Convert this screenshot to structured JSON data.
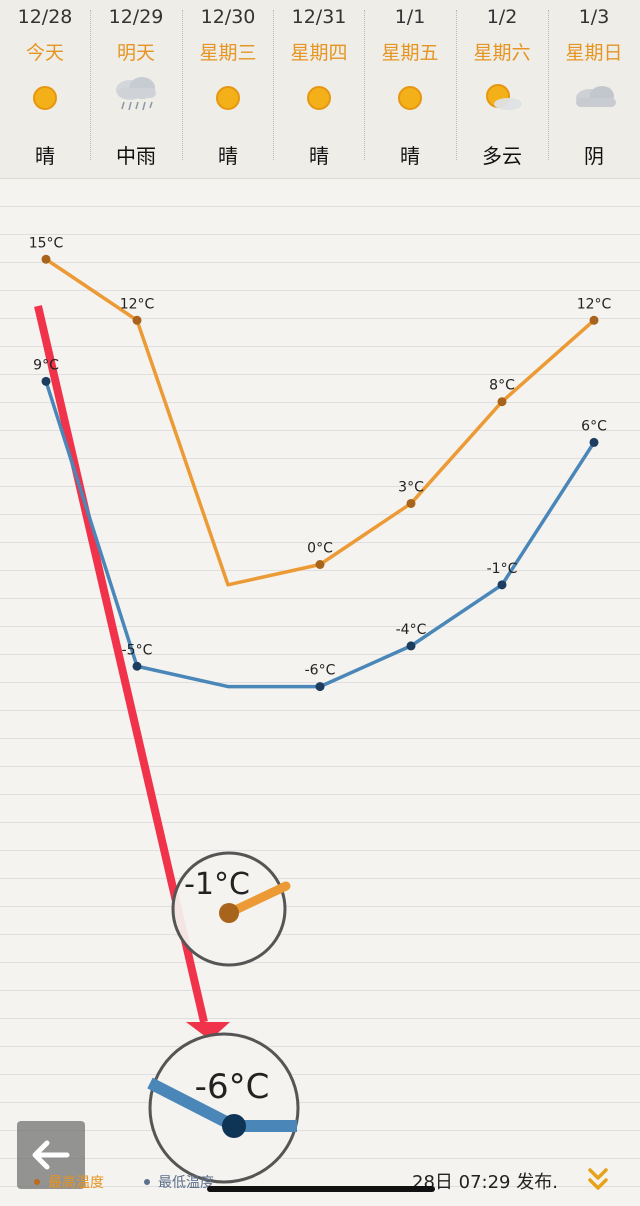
{
  "forecast": {
    "days": [
      {
        "date": "12/28",
        "label": "今天",
        "condition": "晴",
        "icon": "sunny-icon"
      },
      {
        "date": "12/29",
        "label": "明天",
        "condition": "中雨",
        "icon": "rain-icon"
      },
      {
        "date": "12/30",
        "label": "星期三",
        "condition": "晴",
        "icon": "sunny-icon"
      },
      {
        "date": "12/31",
        "label": "星期四",
        "condition": "晴",
        "icon": "sunny-icon"
      },
      {
        "date": "1/1",
        "label": "星期五",
        "condition": "晴",
        "icon": "sunny-icon"
      },
      {
        "date": "1/2",
        "label": "星期六",
        "condition": "多云",
        "icon": "partly-cloudy-icon"
      },
      {
        "date": "1/3",
        "label": "星期日",
        "condition": "阴",
        "icon": "overcast-icon"
      }
    ]
  },
  "chart_data": {
    "type": "line",
    "categories": [
      "12/28",
      "12/29",
      "12/30",
      "12/31",
      "1/1",
      "1/2",
      "1/3"
    ],
    "series": [
      {
        "name": "最高温度",
        "values": [
          15,
          12,
          -1,
          0,
          3,
          8,
          12
        ],
        "color": "#ec9a35"
      },
      {
        "name": "最低温度",
        "values": [
          9,
          -5,
          -6,
          -6,
          -4,
          -1,
          6
        ],
        "color": "#4a87b8"
      }
    ],
    "unit": "°C",
    "highlights": [
      {
        "series": 0,
        "index": 2,
        "label": "-1°C"
      },
      {
        "series": 1,
        "index": 2,
        "label": "-6°C"
      }
    ],
    "annotation_arrow_color": "#f0324a"
  },
  "footer": {
    "legend_high": "最高温度",
    "legend_low": "最低温度",
    "publish_text": "28日 07:29 发布."
  },
  "colors": {
    "label_orange": "#e69523",
    "high_series": "#ec9a35",
    "low_series": "#4a87b8"
  }
}
